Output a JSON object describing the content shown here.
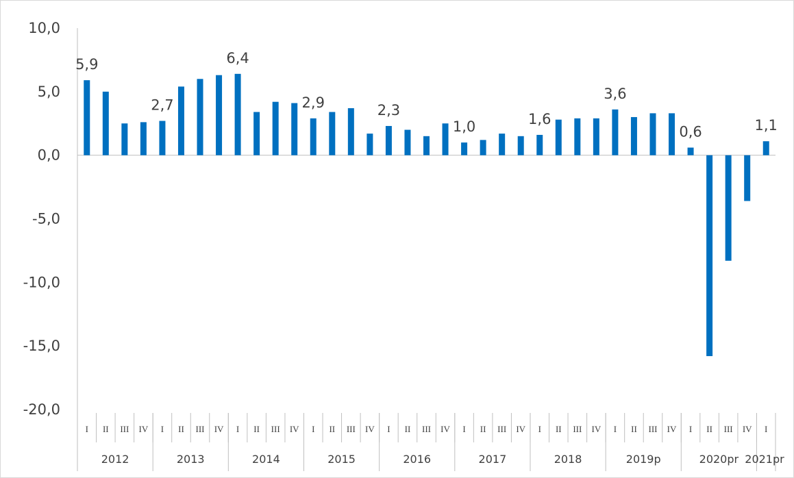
{
  "chart_data": {
    "type": "bar",
    "colors": {
      "bar": "#0070C0",
      "axis": "#bfbfbf",
      "text": "#404040"
    },
    "ylim": [
      -20,
      10
    ],
    "y_ticks": [
      "10,0",
      "5,0",
      "0,0",
      "-5,0",
      "-10,0",
      "-15,0",
      "-20,0"
    ],
    "quarters": [
      "I",
      "II",
      "III",
      "IV",
      "I",
      "II",
      "III",
      "IV",
      "I",
      "II",
      "III",
      "IV",
      "I",
      "II",
      "III",
      "IV",
      "I",
      "II",
      "III",
      "IV",
      "I",
      "II",
      "III",
      "IV",
      "I",
      "II",
      "III",
      "IV",
      "I",
      "II",
      "III",
      "IV",
      "I",
      "II",
      "III",
      "IV",
      "I"
    ],
    "years": [
      "2012",
      "2013",
      "2014",
      "2015",
      "2016",
      "2017",
      "2018",
      "2019p",
      "2020pr",
      "2021pr"
    ],
    "values": [
      5.9,
      5.0,
      2.5,
      2.6,
      2.7,
      5.4,
      6.0,
      6.3,
      6.4,
      3.4,
      4.2,
      4.1,
      2.9,
      3.4,
      3.7,
      1.7,
      2.3,
      2.0,
      1.5,
      2.5,
      1.0,
      1.2,
      1.7,
      1.5,
      1.6,
      2.8,
      2.9,
      2.9,
      3.6,
      3.0,
      3.3,
      3.3,
      0.6,
      -15.8,
      -8.3,
      -3.6,
      1.1
    ],
    "data_labels": [
      {
        "index": 0,
        "text": "5,9"
      },
      {
        "index": 4,
        "text": "2,7"
      },
      {
        "index": 8,
        "text": "6,4"
      },
      {
        "index": 12,
        "text": "2,9"
      },
      {
        "index": 16,
        "text": "2,3"
      },
      {
        "index": 20,
        "text": "1,0"
      },
      {
        "index": 24,
        "text": "1,6"
      },
      {
        "index": 28,
        "text": "3,6"
      },
      {
        "index": 32,
        "text": "0,6"
      },
      {
        "index": 36,
        "text": "1,1"
      }
    ]
  }
}
